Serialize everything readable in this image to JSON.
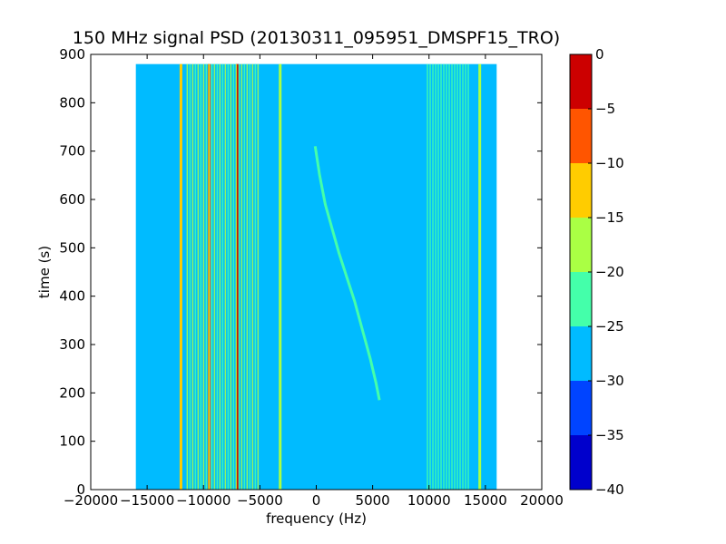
{
  "chart_data": {
    "type": "heatmap",
    "title": "150 MHz signal PSD (20130311_095951_DMSPF15_TRO)",
    "xlabel": "frequency (Hz)",
    "ylabel": "time (s)",
    "xlim": [
      -20000,
      20000
    ],
    "ylim": [
      0,
      900
    ],
    "x_ticks": [
      -20000,
      -15000,
      -10000,
      -5000,
      0,
      5000,
      10000,
      15000,
      20000
    ],
    "y_ticks": [
      0,
      100,
      200,
      300,
      400,
      500,
      600,
      700,
      800,
      900
    ],
    "data_extent": {
      "x": [
        -16000,
        16000
      ],
      "y": [
        0,
        880
      ]
    },
    "background_level_range": [
      -30,
      -25
    ],
    "colorbar": {
      "levels": [
        -40,
        -35,
        -30,
        -25,
        -20,
        -15,
        -10,
        -5,
        0
      ],
      "colors": [
        "#0000cc",
        "#0044ff",
        "#00bbff",
        "#44ffaa",
        "#aaff44",
        "#ffcc00",
        "#ff5500",
        "#cc0000"
      ],
      "tick_labels": [
        "-40",
        "-35",
        "-30",
        "-25",
        "-20",
        "-15",
        "-10",
        "-5",
        "0"
      ]
    },
    "features": [
      {
        "kind": "doppler_trace",
        "level_range": [
          -25,
          -20
        ],
        "points": [
          [
            -100,
            710
          ],
          [
            300,
            650
          ],
          [
            800,
            590
          ],
          [
            1400,
            540
          ],
          [
            2000,
            490
          ],
          [
            2700,
            440
          ],
          [
            3400,
            390
          ],
          [
            4100,
            330
          ],
          [
            4800,
            270
          ],
          [
            5300,
            220
          ],
          [
            5600,
            185
          ]
        ]
      },
      {
        "kind": "constant_line",
        "frequency": -7000,
        "level_range": [
          -5,
          0
        ]
      },
      {
        "kind": "constant_line",
        "frequency": -9500,
        "level_range": [
          -10,
          -5
        ]
      },
      {
        "kind": "constant_line",
        "frequency": -12000,
        "level_range": [
          -15,
          -10
        ]
      },
      {
        "kind": "constant_line",
        "frequency": -3200,
        "level_range": [
          -20,
          -15
        ]
      },
      {
        "kind": "constant_line",
        "frequency": 14500,
        "level_range": [
          -20,
          -15
        ]
      },
      {
        "kind": "band",
        "frequency_range": [
          -11500,
          -5000
        ],
        "level_range": [
          -25,
          -15
        ]
      },
      {
        "kind": "band",
        "frequency_range": [
          9800,
          13500
        ],
        "level_range": [
          -25,
          -20
        ]
      }
    ]
  }
}
